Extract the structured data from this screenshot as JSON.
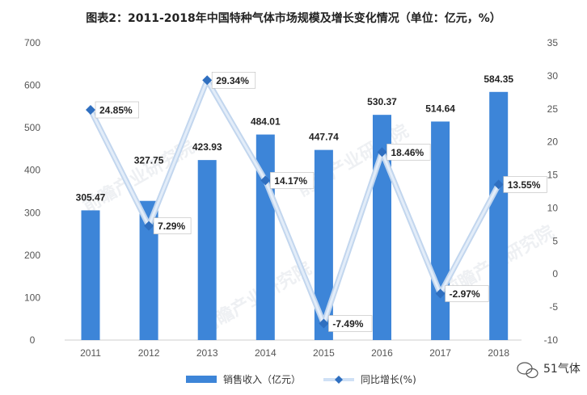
{
  "chart_data": {
    "type": "bar",
    "title": "图表2：2011-2018年中国特种气体市场规模及增长变化情况（单位：亿元，%）",
    "categories": [
      "2011",
      "2012",
      "2013",
      "2014",
      "2015",
      "2016",
      "2017",
      "2018"
    ],
    "series": [
      {
        "name": "销售收入（亿元）",
        "type": "bar",
        "axis": "left",
        "color": "#3d85d8",
        "values": [
          305.47,
          327.75,
          423.93,
          484.01,
          447.74,
          530.37,
          514.64,
          584.35
        ],
        "labels": [
          "305.47",
          "327.75",
          "423.93",
          "484.01",
          "447.74",
          "530.37",
          "514.64",
          "584.35"
        ]
      },
      {
        "name": "同比增长(%)",
        "type": "line",
        "axis": "right",
        "color": "#cfe0f5",
        "marker_color": "#2f6fc0",
        "values": [
          24.85,
          7.29,
          29.34,
          14.17,
          -7.49,
          18.46,
          -2.97,
          13.55
        ],
        "labels": [
          "24.85%",
          "7.29%",
          "29.34%",
          "14.17%",
          "-7.49%",
          "18.46%",
          "-2.97%",
          "13.55%"
        ]
      }
    ],
    "y_left": {
      "min": 0,
      "max": 700,
      "ticks": [
        "0",
        "100",
        "200",
        "300",
        "400",
        "500",
        "600",
        "700"
      ]
    },
    "y_right": {
      "min": -10,
      "max": 35,
      "ticks": [
        "-10",
        "-5",
        "0",
        "5",
        "10",
        "15",
        "20",
        "25",
        "30",
        "35"
      ]
    },
    "grid": false,
    "legend_position": "bottom-center"
  },
  "watermark": {
    "text": "前瞻产业研究院",
    "color": "#cfd6de"
  },
  "badge": {
    "text": "51气体",
    "icon": "wechat-icon"
  }
}
